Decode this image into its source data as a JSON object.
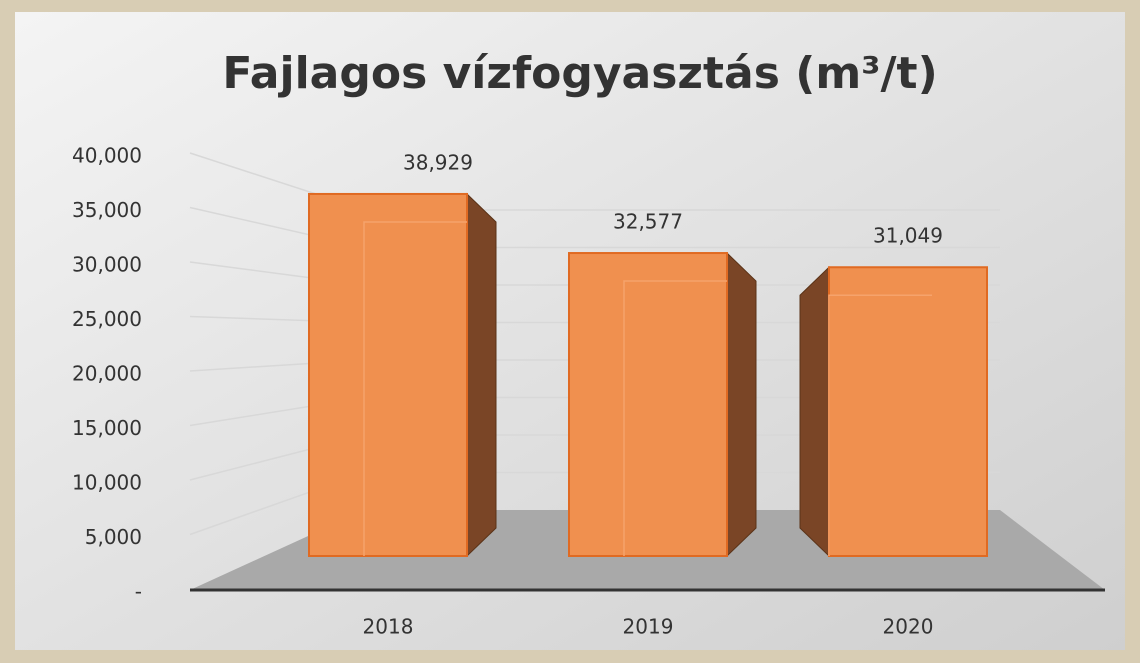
{
  "chart_data": {
    "type": "bar",
    "title": "Fajlagos vízfogyasztás (m³/t)",
    "categories": [
      "2018",
      "2019",
      "2020"
    ],
    "values": [
      38.929,
      32.577,
      31.049
    ],
    "value_labels": [
      "38,929",
      "32,577",
      "31,049"
    ],
    "color": "#f0904f",
    "ylim": [
      0,
      40
    ],
    "yticks": [
      {
        "value": 0,
        "label": "-"
      },
      {
        "value": 5,
        "label": "5,000"
      },
      {
        "value": 10,
        "label": "10,000"
      },
      {
        "value": 15,
        "label": "15,000"
      },
      {
        "value": 20,
        "label": "20,000"
      },
      {
        "value": 25,
        "label": "25,000"
      },
      {
        "value": 30,
        "label": "30,000"
      },
      {
        "value": 35,
        "label": "35,000"
      },
      {
        "value": 40,
        "label": "40,000"
      }
    ],
    "grid": true
  }
}
